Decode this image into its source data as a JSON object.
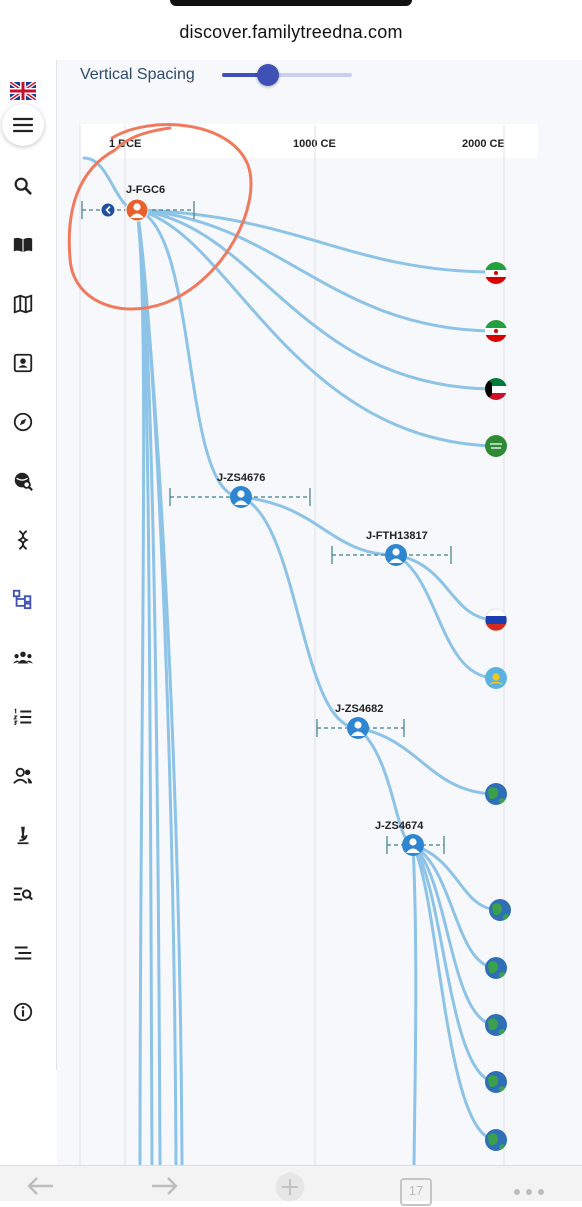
{
  "browser": {
    "url": "discover.familytreedna.com",
    "tab_count": "17"
  },
  "sidebar": {
    "locale_flag": "uk-flag-icon",
    "items": [
      {
        "icon": "menu-icon"
      },
      {
        "icon": "search-icon"
      },
      {
        "icon": "book-icon"
      },
      {
        "icon": "map-icon"
      },
      {
        "icon": "profile-card-icon"
      },
      {
        "icon": "compass-icon"
      },
      {
        "icon": "globe-search-icon"
      },
      {
        "icon": "dna-icon"
      },
      {
        "icon": "tree-icon",
        "active": true
      },
      {
        "icon": "group-icon"
      },
      {
        "icon": "numbered-list-icon"
      },
      {
        "icon": "people-icon"
      },
      {
        "icon": "microscope-icon"
      },
      {
        "icon": "list-search-icon"
      },
      {
        "icon": "indent-list-icon"
      },
      {
        "icon": "info-icon"
      }
    ]
  },
  "controls": {
    "vertical_spacing_label": "Vertical Spacing",
    "vertical_spacing_value": 0.35
  },
  "timeline": {
    "ticks": [
      "1 BCE",
      "1000 CE",
      "2000 CE"
    ]
  },
  "tree": {
    "nodes": [
      {
        "id": "J-FGC6",
        "label": "J-FGC6",
        "highlight": true
      },
      {
        "id": "J-ZS4676",
        "label": "J-ZS4676"
      },
      {
        "id": "J-FTH13817",
        "label": "J-FTH13817"
      },
      {
        "id": "J-ZS4682",
        "label": "J-ZS4682"
      },
      {
        "id": "J-ZS4674",
        "label": "J-ZS4674"
      }
    ],
    "leaves": [
      {
        "flag": "iran-flag-icon"
      },
      {
        "flag": "iran-flag-icon"
      },
      {
        "flag": "kuwait-flag-icon"
      },
      {
        "flag": "saudi-flag-icon"
      },
      {
        "flag": "russia-flag-icon"
      },
      {
        "flag": "kazakhstan-flag-icon"
      },
      {
        "flag": "globe-icon"
      },
      {
        "flag": "globe-icon"
      },
      {
        "flag": "globe-icon"
      },
      {
        "flag": "globe-icon"
      },
      {
        "flag": "globe-icon"
      },
      {
        "flag": "globe-icon"
      }
    ]
  },
  "colors": {
    "accent": "#3f51b5",
    "branch": "#8dc3e6",
    "node": "#2f86d0",
    "root_node": "#e8612c",
    "annotation": "#f07a5e"
  }
}
